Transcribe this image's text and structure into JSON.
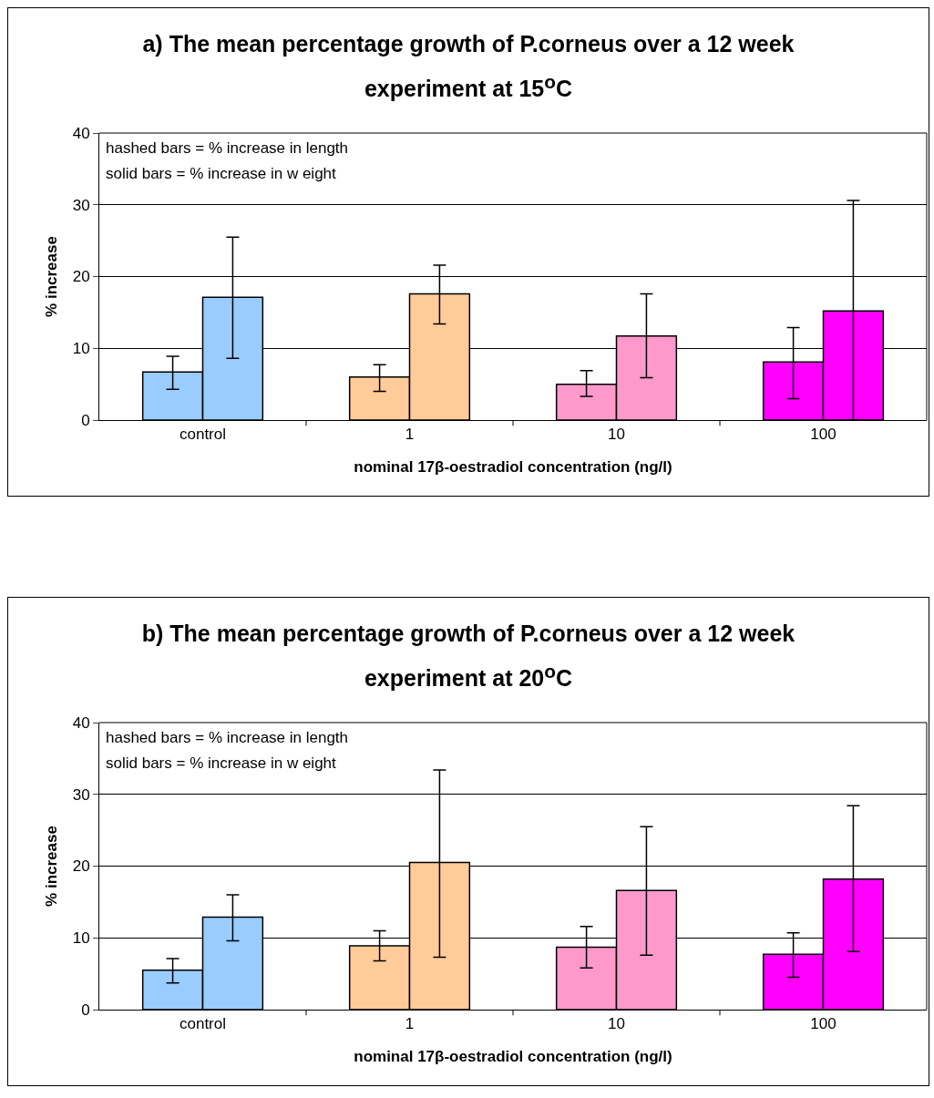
{
  "chart_data": [
    {
      "type": "bar",
      "title": "a)  The mean percentage growth of P.corneus over a 12 week experiment at 15$^{o}$C",
      "xlabel": "nominal 17β-oestradiol concentration (ng/l)",
      "ylabel": "% increase",
      "categories": [
        "control",
        "1",
        "10",
        "100"
      ],
      "ylim": [
        0,
        40
      ],
      "yticks": [
        0,
        10,
        20,
        30,
        40
      ],
      "grid": "y",
      "annotations": [
        "hashed bars = % increase in length",
        "solid bars = % increase in w eight"
      ],
      "series": [
        {
          "colors": [
            "#99ccff",
            "#ffcc99",
            "#ff99cc",
            "#ff00ff"
          ],
          "values": [
            6.7,
            6.0,
            5.0,
            8.1
          ],
          "errors": [
            [
              4.3,
              8.9
            ],
            [
              4.0,
              7.7
            ],
            [
              3.3,
              6.9
            ],
            [
              3.0,
              12.9
            ]
          ]
        },
        {
          "colors": [
            "#99ccff",
            "#ffcc99",
            "#ff99cc",
            "#ff00ff"
          ],
          "values": [
            17.1,
            17.6,
            11.7,
            15.2
          ],
          "errors": [
            [
              8.6,
              25.5
            ],
            [
              13.4,
              21.6
            ],
            [
              5.9,
              17.6
            ],
            [
              0,
              30.6
            ]
          ]
        }
      ]
    },
    {
      "type": "bar",
      "title": "b)  The mean percentage growth of P.corneus over a 12 week experiment at 20$^{o}$C",
      "xlabel": "nominal 17β-oestradiol concentration (ng/l)",
      "ylabel": "% increase",
      "categories": [
        "control",
        "1",
        "10",
        "100"
      ],
      "ylim": [
        0,
        40
      ],
      "yticks": [
        0,
        10,
        20,
        30,
        40
      ],
      "grid": "y",
      "annotations": [
        "hashed bars = % increase in length",
        "solid bars = % increase in w eight"
      ],
      "series": [
        {
          "colors": [
            "#99ccff",
            "#ffcc99",
            "#ff99cc",
            "#ff00ff"
          ],
          "values": [
            5.5,
            8.9,
            8.7,
            7.7
          ],
          "errors": [
            [
              3.7,
              7.1
            ],
            [
              6.8,
              11.0
            ],
            [
              5.8,
              11.6
            ],
            [
              4.5,
              10.7
            ]
          ]
        },
        {
          "colors": [
            "#99ccff",
            "#ffcc99",
            "#ff99cc",
            "#ff00ff"
          ],
          "values": [
            12.9,
            20.5,
            16.6,
            18.2
          ],
          "errors": [
            [
              9.6,
              16.0
            ],
            [
              7.3,
              33.4
            ],
            [
              7.6,
              25.5
            ],
            [
              8.1,
              28.4
            ]
          ]
        }
      ]
    }
  ]
}
